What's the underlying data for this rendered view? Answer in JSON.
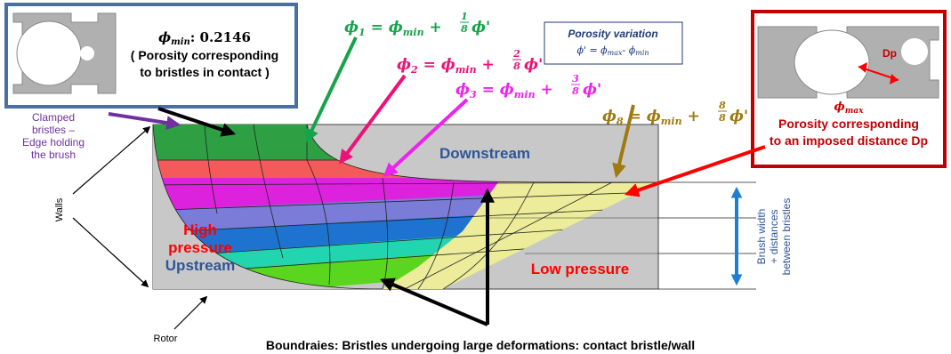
{
  "inset_min": {
    "phi_label": "ϕmin: 0.2146",
    "text_line1": "( Porosity corresponding",
    "text_line2": "to bristles in contact )"
  },
  "inset_max": {
    "dp_label": "Dp",
    "phi_label": "ϕmax",
    "text_line1": "Porosity corresponding",
    "text_line2": "to an imposed distance Dp"
  },
  "porosity_variation": {
    "title": "Porosity variation",
    "formula": "ϕ' = ϕmax- ϕmin"
  },
  "formulas": {
    "phi1": "ϕ1 = ϕmin + 1/8 ϕ'",
    "phi2": "ϕ2 = ϕmin + 2/8 ϕ'",
    "phi3": "ϕ3 = ϕmin + 3/8 ϕ'",
    "phi8": "ϕ8 = ϕmin + 8/8 ϕ'"
  },
  "labels": {
    "clamped_line1": "Clamped",
    "clamped_line2": "bristles –",
    "clamped_line3": "Edge holding",
    "clamped_line4": "the brush",
    "walls": "Walls",
    "rotor": "Rotor",
    "downstream": "Downstream",
    "high_pressure_line1": "High",
    "high_pressure_line2": "pressure",
    "upstream": "Upstream",
    "low_pressure": "Low pressure",
    "brush_width_line1": "Brush width",
    "brush_width_line2": "+ distances",
    "brush_width_line3": "between bristles",
    "boundaries": "Boundraies: Bristles undergoing large deformations: contact bristle/wall"
  },
  "colors": {
    "box_fill": "#c8c8c8",
    "inset_min_border": "#4a6fa5",
    "inset_max_border": "#c00000",
    "arrow_phi1": "#17a34a",
    "arrow_phi2": "#ee1177",
    "arrow_phi3": "#ee22ee",
    "arrow_phi8": "#a07a10",
    "arrow_clamped": "#7030a0",
    "arrow_max": "#ff0000",
    "brush_width_arrow": "#1e7fd0",
    "row_colors": [
      "#2ea043",
      "#f55a5a",
      "#dd22dd",
      "#7b7bd8",
      "#1f73d0",
      "#22d4b0",
      "#5bd61f",
      "#ecec9a"
    ]
  }
}
